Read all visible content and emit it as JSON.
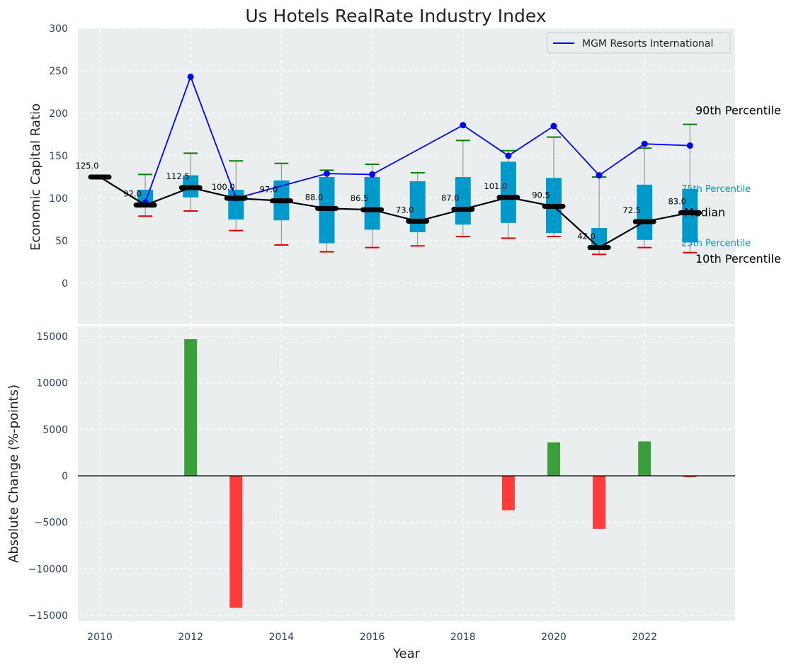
{
  "chart_data": [
    {
      "type": "line+box",
      "title": "Us Hotels RealRate Industry Index",
      "ylabel": "Economic Capital Ratio",
      "xlabel": "",
      "ylim": [
        -50,
        300
      ],
      "yticks": [
        0,
        50,
        100,
        150,
        200,
        250,
        300
      ],
      "grid": true,
      "legend": {
        "position": "top-right",
        "entries": [
          "MGM Resorts International"
        ]
      },
      "x": [
        2010,
        2011,
        2012,
        2013,
        2014,
        2015,
        2016,
        2017,
        2018,
        2019,
        2020,
        2021,
        2022,
        2023
      ],
      "company_series": {
        "name": "MGM Resorts International",
        "x": [
          2011,
          2012,
          2013,
          2015,
          2016,
          2018,
          2019,
          2020,
          2021,
          2022,
          2023
        ],
        "values": [
          95,
          243,
          100,
          129,
          128,
          186,
          150,
          185,
          127,
          164,
          162
        ]
      },
      "median": [
        125.0,
        92.0,
        112.5,
        100.0,
        97.0,
        88.0,
        86.5,
        73.0,
        87.0,
        101.0,
        90.5,
        42.0,
        72.5,
        83.0
      ],
      "median_labels": [
        "125.0",
        "92.0",
        "112.5",
        "100.0",
        "97.0",
        "88.0",
        "86.5",
        "73.0",
        "87.0",
        "101.0",
        "90.5",
        "42.0",
        "72.5",
        "83.0"
      ],
      "p10": [
        null,
        79,
        85,
        62,
        45,
        37,
        42,
        44,
        55,
        53,
        55,
        34,
        42,
        36
      ],
      "p25": [
        null,
        90,
        101,
        75,
        74,
        47,
        63,
        60,
        69,
        71,
        59,
        40,
        51,
        48
      ],
      "p75": [
        null,
        110,
        127,
        110,
        121,
        125,
        125,
        120,
        125,
        143,
        124,
        65,
        116,
        111
      ],
      "p90": [
        null,
        128,
        153,
        144,
        141,
        133,
        140,
        130,
        168,
        156,
        172,
        125,
        159,
        187
      ],
      "annotations": {
        "p90": "90th Percentile",
        "p75": "75th Percentile",
        "median": "Median",
        "p25": "25th Percentile",
        "p10": "10th Percentile"
      }
    },
    {
      "type": "bar",
      "ylabel": "Absolute Change (%-points)",
      "xlabel": "Year",
      "ylim": [
        -15500,
        15500
      ],
      "yticks": [
        -15000,
        -10000,
        -5000,
        0,
        5000,
        10000,
        15000
      ],
      "ytick_labels": [
        "−15000",
        "−10000",
        "−5000",
        "0",
        "5000",
        "10000",
        "15000"
      ],
      "xticks": [
        2010,
        2012,
        2014,
        2016,
        2018,
        2020,
        2022
      ],
      "x": [
        2012,
        2013,
        2019,
        2020,
        2021,
        2022,
        2023
      ],
      "values": [
        14700,
        -14200,
        -3700,
        3600,
        -5700,
        3700,
        -150
      ],
      "grid": true
    }
  ],
  "colors": {
    "panel_bg": "#EAEEEF",
    "company_line": "#0000FF",
    "median_line": "#000000",
    "box": "#0099CC",
    "whisker": "#888888",
    "p90_cap": "#008000",
    "p10_cap": "#E00000",
    "bar_positive": "#3A9E3A",
    "bar_negative": "#FF3B3B",
    "tick_text": "#2B3F55",
    "percentile_label": "#0099BB"
  }
}
